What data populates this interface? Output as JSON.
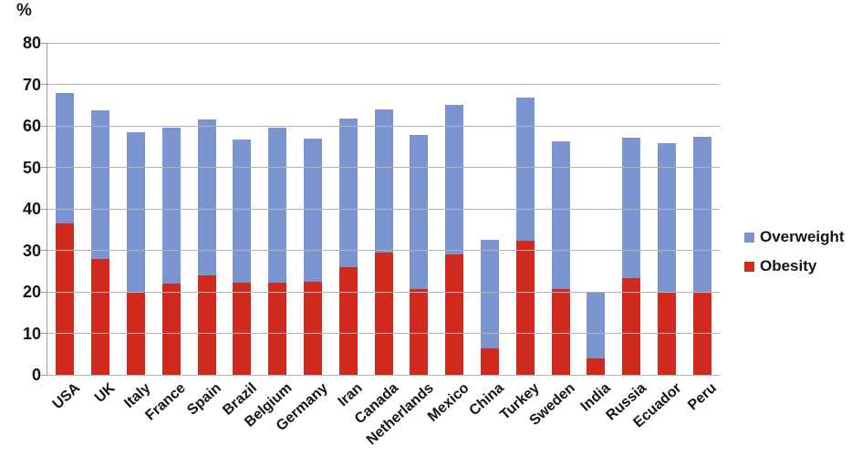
{
  "page": {
    "background": "#ffffff"
  },
  "chart_data": {
    "type": "bar",
    "stacked": true,
    "title": "",
    "xlabel": "",
    "ylabel": "%",
    "ylim": [
      0,
      80
    ],
    "yticks": [
      0,
      10,
      20,
      30,
      40,
      50,
      60,
      70,
      80
    ],
    "grid": true,
    "legend_position": "right",
    "categories": [
      "USA",
      "UK",
      "Italy",
      "France",
      "Spain",
      "Brazil",
      "Belgium",
      "Germany",
      "Iran",
      "Canada",
      "Netherlands",
      "Mexico",
      "China",
      "Turkey",
      "Sweden",
      "India",
      "Russia",
      "Ecuador",
      "Peru"
    ],
    "series": [
      {
        "name": "Obesity",
        "color": "#d02a1e",
        "values": [
          36.5,
          28.0,
          20.0,
          22.0,
          24.0,
          22.3,
          22.3,
          22.5,
          26.0,
          29.5,
          20.7,
          29.0,
          6.3,
          32.3,
          20.7,
          4.0,
          23.3,
          20.0,
          19.8
        ]
      },
      {
        "name": "Overweight",
        "color": "#7b95d0",
        "values": [
          31.5,
          35.8,
          38.4,
          37.5,
          37.6,
          34.3,
          37.2,
          34.4,
          35.7,
          34.5,
          37.1,
          36.0,
          26.3,
          34.5,
          35.5,
          15.7,
          33.9,
          35.9,
          37.6
        ]
      }
    ],
    "stacked_totals": [
      68.0,
      63.8,
      58.4,
      59.5,
      61.6,
      56.6,
      59.5,
      56.9,
      61.7,
      64.0,
      57.8,
      65.0,
      32.6,
      66.8,
      56.2,
      19.7,
      57.2,
      55.9,
      57.4
    ],
    "legend": [
      {
        "label": "Overweight",
        "color": "#7b95d0"
      },
      {
        "label": "Obesity",
        "color": "#d02a1e"
      }
    ],
    "axis_color": "#9a9a9a",
    "grid_color": "#b3b3b3",
    "text_color": "#141414"
  }
}
